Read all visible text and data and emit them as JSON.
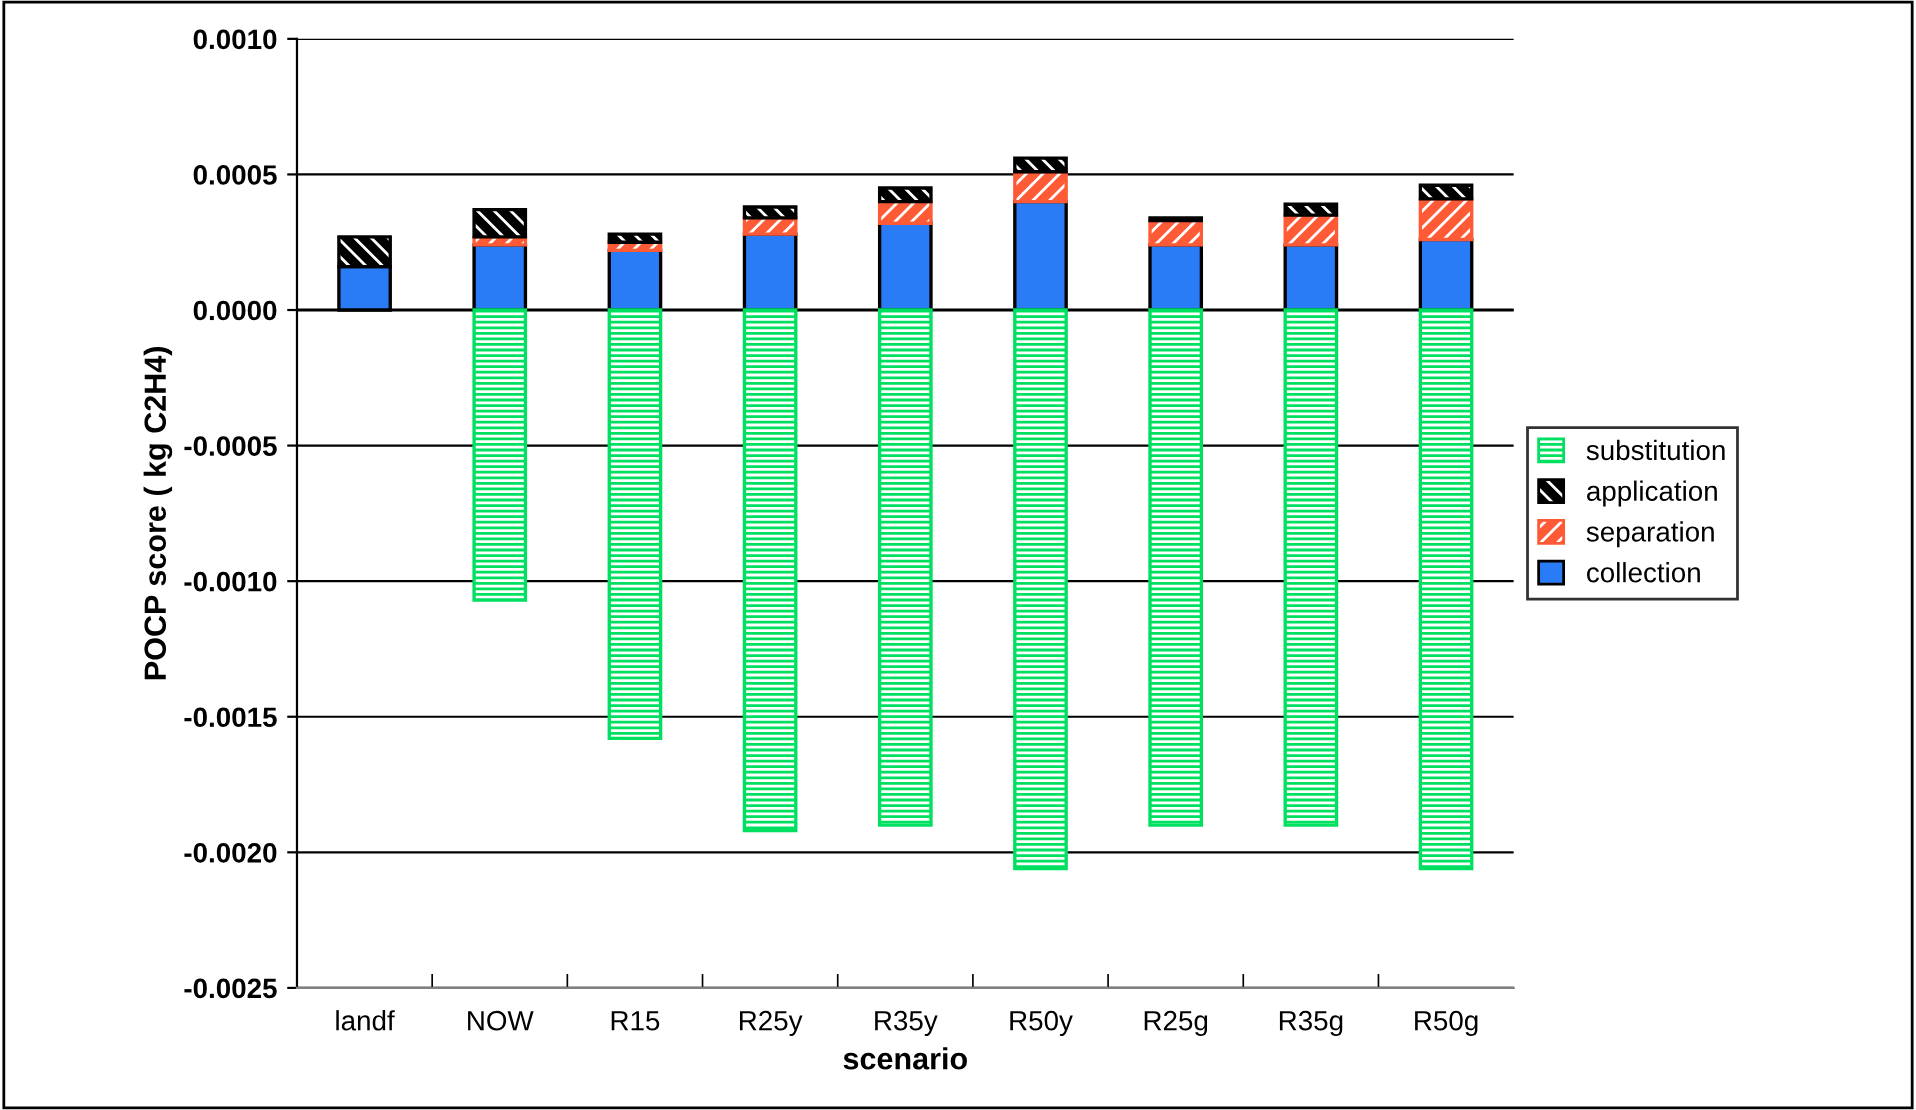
{
  "chart_data": {
    "type": "bar",
    "stacked": true,
    "xlabel": "scenario",
    "ylabel": "POCP score ( kg C2H4)",
    "categories": [
      "landf",
      "NOW",
      "R15",
      "R25y",
      "R35y",
      "R50y",
      "R25g",
      "R35g",
      "R50g"
    ],
    "series": [
      {
        "name": "collection",
        "color": "#2a7cf6",
        "values": [
          0.00016,
          0.00024,
          0.00022,
          0.00028,
          0.00032,
          0.0004,
          0.00024,
          0.00024,
          0.00026
        ]
      },
      {
        "name": "separation",
        "color": "#ff5a36",
        "values": [
          null,
          3e-05,
          3e-05,
          6e-05,
          8e-05,
          0.00011,
          9e-05,
          0.00011,
          0.00015
        ]
      },
      {
        "name": "application",
        "color": "#000000",
        "values": [
          0.00011,
          0.0001,
          3e-05,
          4e-05,
          5e-05,
          5e-05,
          1e-05,
          4e-05,
          5e-05
        ]
      },
      {
        "name": "substitution",
        "color": "#00e060",
        "values": [
          null,
          -0.00107,
          -0.00158,
          -0.00192,
          -0.0019,
          -0.00206,
          -0.0019,
          -0.0019,
          -0.00206
        ]
      }
    ],
    "ylim": [
      -0.0025,
      0.001
    ],
    "yticks": [
      {
        "value": -0.0025,
        "label": "-0.0025"
      },
      {
        "value": -0.002,
        "label": "-0.0020"
      },
      {
        "value": -0.0015,
        "label": "-0.0015"
      },
      {
        "value": -0.001,
        "label": "-0.0010"
      },
      {
        "value": -0.0005,
        "label": "-0.0005"
      },
      {
        "value": 0,
        "label": "0.0000"
      },
      {
        "value": 0.0005,
        "label": "0.0005"
      },
      {
        "value": 0.001,
        "label": "0.0010"
      }
    ],
    "grid": "y",
    "legend": "right"
  }
}
